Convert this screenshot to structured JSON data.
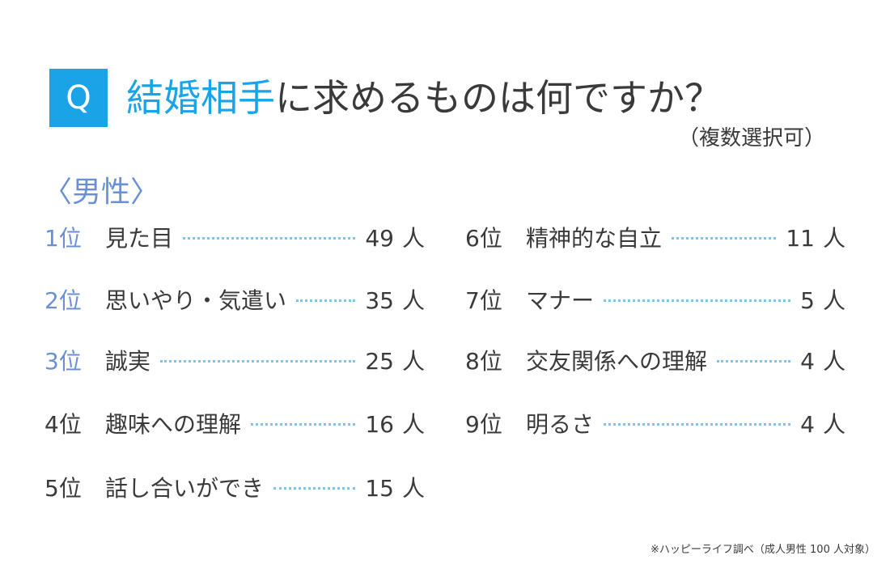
{
  "header": {
    "q_label": "Q",
    "title_accent": "結婚相手",
    "title_rest": "に求めるものは何ですか？",
    "subtitle": "（複数選択可）"
  },
  "section_label": "〈男性〉",
  "ranking": [
    {
      "rank": "1位",
      "label": "見た目",
      "count": "49",
      "unit": "人"
    },
    {
      "rank": "2位",
      "label": "思いやり・気遣い",
      "count": "35",
      "unit": "人"
    },
    {
      "rank": "3位",
      "label": "誠実",
      "count": "25",
      "unit": "人"
    },
    {
      "rank": "4位",
      "label": "趣味への理解",
      "count": "16",
      "unit": "人"
    },
    {
      "rank": "5位",
      "label": "話し合いができ",
      "count": "15",
      "unit": "人"
    },
    {
      "rank": "6位",
      "label": "精神的な自立",
      "count": "11",
      "unit": "人"
    },
    {
      "rank": "7位",
      "label": "マナー",
      "count": "5",
      "unit": "人"
    },
    {
      "rank": "8位",
      "label": "交友関係への理解",
      "count": "4",
      "unit": "人"
    },
    {
      "rank": "9位",
      "label": "明るさ",
      "count": "4",
      "unit": "人"
    }
  ],
  "footnote": "※ハッピーライフ調べ（成人男性 100 人対象）",
  "colors": {
    "accent": "#1aa3e6",
    "rank_highlight": "#6a8fd8",
    "dots": "#7cc4ef",
    "text": "#3a3a3a"
  }
}
